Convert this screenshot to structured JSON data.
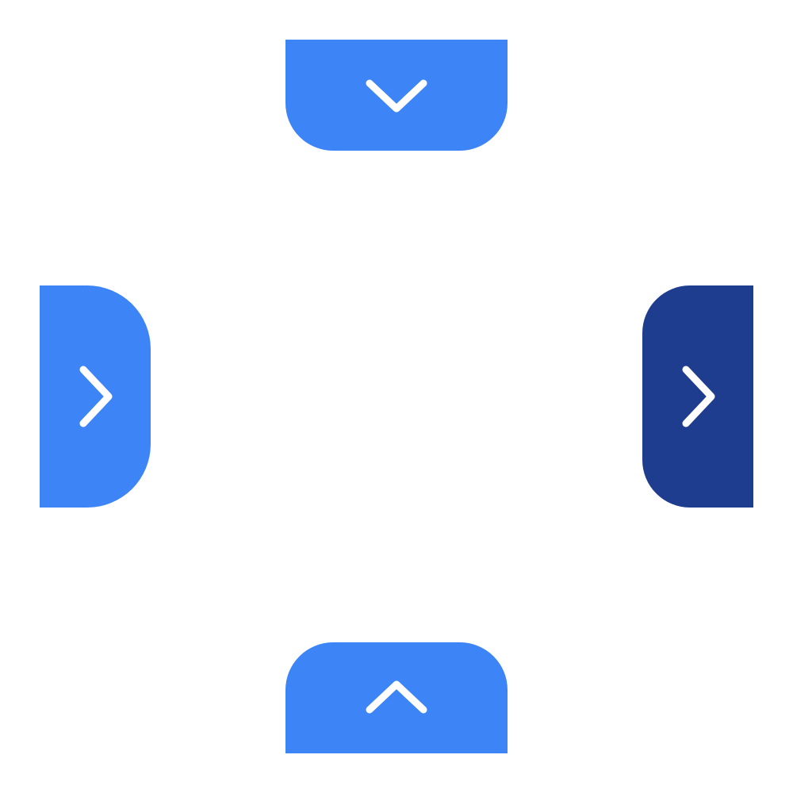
{
  "colors": {
    "background": "#ffffff",
    "accent": "#3d84f7",
    "accent_active": "#1f3d8f",
    "icon": "#ffffff"
  },
  "tabs": {
    "top": {
      "icon": "chevron-down-icon",
      "color": "#3d84f7"
    },
    "left": {
      "icon": "chevron-right-icon",
      "color": "#3d84f7"
    },
    "right": {
      "icon": "chevron-right-icon",
      "color": "#1f3d8f",
      "active": true
    },
    "bottom": {
      "icon": "chevron-up-icon",
      "color": "#3d84f7"
    }
  }
}
